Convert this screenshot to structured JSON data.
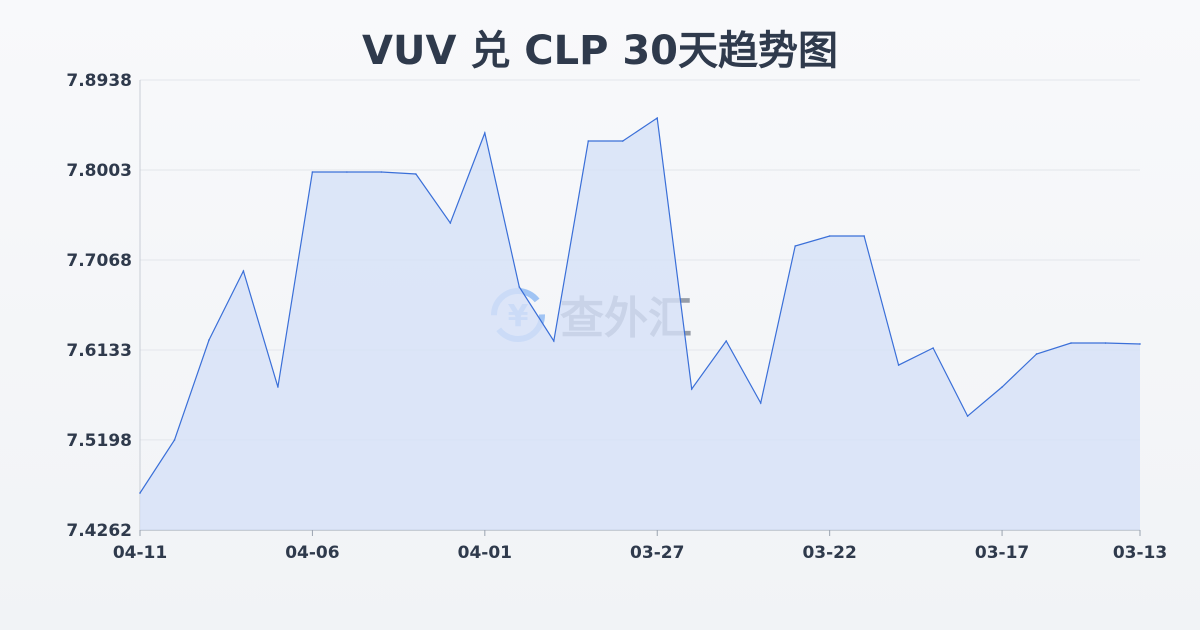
{
  "chart_data": {
    "type": "area",
    "title": "VUV 兑 CLP 30天趋势图",
    "categories": [
      "04-11",
      "04-10",
      "04-09",
      "04-08",
      "04-07",
      "04-06",
      "04-05",
      "04-04",
      "04-03",
      "04-02",
      "04-01",
      "03-31",
      "03-30",
      "03-29",
      "03-28",
      "03-27",
      "03-26",
      "03-25",
      "03-24",
      "03-23",
      "03-22",
      "03-21",
      "03-20",
      "03-19",
      "03-18",
      "03-17",
      "03-16",
      "03-15",
      "03-14",
      "03-13"
    ],
    "values": [
      7.4646,
      7.5197,
      7.6236,
      7.6953,
      7.5748,
      7.7982,
      7.7982,
      7.7982,
      7.7961,
      7.7452,
      7.8387,
      7.6787,
      7.6226,
      7.8304,
      7.8304,
      7.8543,
      7.5727,
      7.6226,
      7.5582,
      7.7213,
      7.7317,
      7.7317,
      7.5976,
      7.6153,
      7.5446,
      7.5748,
      7.6091,
      7.6205,
      7.6205,
      7.6195
    ],
    "x_tick_labels": [
      "04-11",
      "04-06",
      "04-01",
      "03-27",
      "03-22",
      "03-17",
      "03-13"
    ],
    "y_tick_labels": [
      "7.8938",
      "7.8003",
      "7.7068",
      "7.6133",
      "7.5198",
      "7.4262"
    ],
    "ylim": [
      7.4262,
      7.8938
    ],
    "grid": true,
    "line_color": "#3a6fd8",
    "fill_color": "#d6e1f7"
  },
  "watermark": {
    "text": "查外汇",
    "icon": "yen-exchange-icon"
  }
}
